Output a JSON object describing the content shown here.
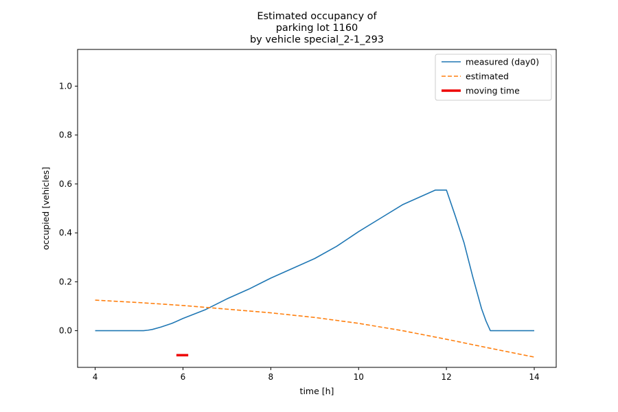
{
  "chart_data": {
    "type": "line",
    "title_lines": [
      "Estimated occupancy of",
      "parking lot 1160",
      "by vehicle special_2-1_293"
    ],
    "xlabel": "time [h]",
    "ylabel": "occupied [vehicles]",
    "xlim": [
      3.6,
      14.5
    ],
    "ylim": [
      -0.15,
      1.15
    ],
    "xticks": [
      4,
      6,
      8,
      10,
      12,
      14
    ],
    "yticks": [
      0.0,
      0.2,
      0.4,
      0.6,
      0.8,
      1.0
    ],
    "xtick_labels": [
      "4",
      "6",
      "8",
      "10",
      "12",
      "14"
    ],
    "ytick_labels": [
      "0.0",
      "0.2",
      "0.4",
      "0.6",
      "0.8",
      "1.0"
    ],
    "grid": false,
    "legend_position": "top-right",
    "series": [
      {
        "name": "measured (day0)",
        "color": "#1f77b4",
        "style": "solid",
        "x": [
          4.0,
          5.0,
          5.1,
          5.2,
          5.3,
          5.5,
          5.75,
          6.0,
          6.5,
          7.0,
          7.5,
          8.0,
          8.5,
          9.0,
          9.5,
          10.0,
          10.5,
          11.0,
          11.5,
          11.75,
          12.0,
          12.2,
          12.4,
          12.6,
          12.8,
          12.9,
          13.0,
          14.0
        ],
        "y": [
          0.0,
          0.0,
          0.0,
          0.002,
          0.005,
          0.015,
          0.03,
          0.05,
          0.085,
          0.13,
          0.17,
          0.215,
          0.255,
          0.295,
          0.345,
          0.405,
          0.46,
          0.515,
          0.555,
          0.575,
          0.575,
          0.47,
          0.36,
          0.22,
          0.09,
          0.04,
          0.0,
          0.0
        ]
      },
      {
        "name": "estimated",
        "color": "#ff7f0e",
        "style": "dashed",
        "x": [
          4.0,
          5.0,
          6.0,
          7.0,
          8.0,
          9.0,
          10.0,
          11.0,
          12.0,
          13.0,
          14.0
        ],
        "y": [
          0.125,
          0.115,
          0.103,
          0.088,
          0.073,
          0.054,
          0.03,
          0.0,
          -0.035,
          -0.072,
          -0.108
        ]
      },
      {
        "name": "moving time",
        "color": "#ee0000",
        "style": "thick",
        "x": [
          5.85,
          6.12
        ],
        "y": [
          -0.1,
          -0.1
        ]
      }
    ]
  }
}
